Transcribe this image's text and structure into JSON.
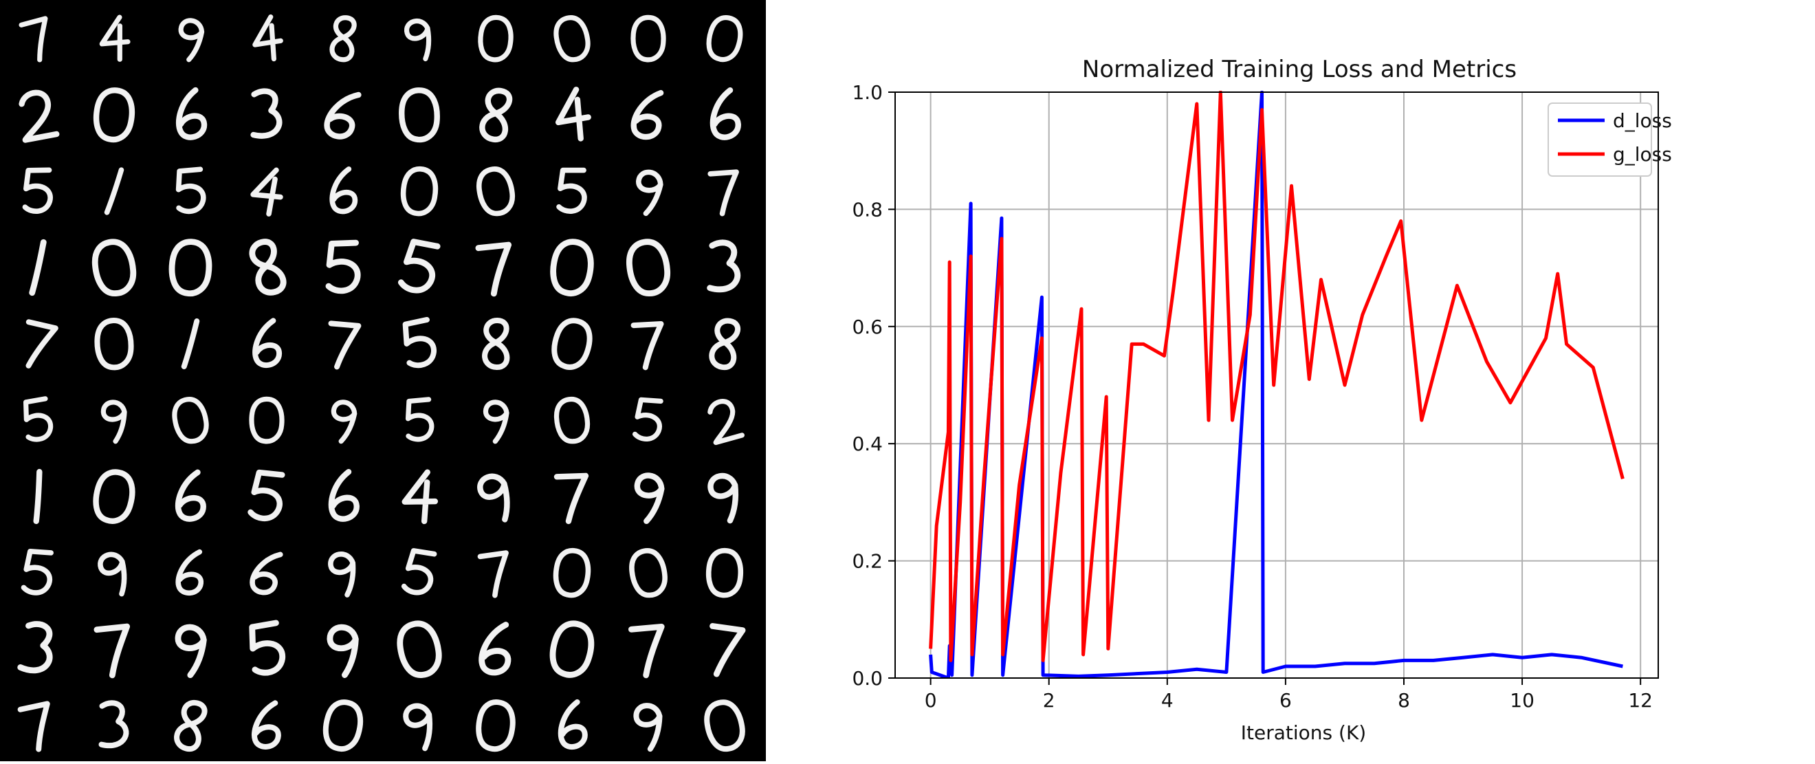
{
  "digit_grid": {
    "description_rows": 10,
    "cols": 10,
    "samples": [
      [
        "7",
        "4",
        "9",
        "4",
        "8",
        "9",
        "0",
        "0",
        "0",
        "0"
      ],
      [
        "2",
        "0",
        "6",
        "3",
        "6",
        "0",
        "8",
        "4",
        "6",
        "6"
      ],
      [
        "5",
        "1",
        "5",
        "4",
        "6",
        "0",
        "0",
        "5",
        "9",
        "7"
      ],
      [
        "1",
        "0",
        "0",
        "8",
        "5",
        "5",
        "7",
        "0",
        "0",
        "3"
      ],
      [
        "7",
        "0",
        "1",
        "6",
        "7",
        "5",
        "8",
        "0",
        "7",
        "8"
      ],
      [
        "5",
        "9",
        "0",
        "0",
        "9",
        "5",
        "9",
        "0",
        "5",
        "2"
      ],
      [
        "1",
        "0",
        "6",
        "5",
        "6",
        "4",
        "9",
        "7",
        "9",
        "9"
      ],
      [
        "5",
        "9",
        "6",
        "6",
        "9",
        "5",
        "7",
        "0",
        "0",
        "0"
      ],
      [
        "3",
        "7",
        "9",
        "5",
        "9",
        "0",
        "6",
        "0",
        "7",
        "7"
      ],
      [
        "7",
        "3",
        "8",
        "6",
        "0",
        "9",
        "0",
        "6",
        "9",
        "0"
      ]
    ]
  },
  "chart_data": {
    "type": "line",
    "title": "Normalized Training Loss and Metrics",
    "xlabel": "Iterations (K)",
    "ylabel": "",
    "xlim": [
      -0.6,
      12.3
    ],
    "ylim": [
      0.0,
      1.0
    ],
    "xticks": [
      "0",
      "2",
      "4",
      "6",
      "8",
      "10",
      "12"
    ],
    "yticks": [
      "0.0",
      "0.2",
      "0.4",
      "0.6",
      "0.8",
      "1.0"
    ],
    "grid": true,
    "legend_position": "top-right",
    "series": [
      {
        "name": "d_loss",
        "color": "#0000ff",
        "points": [
          [
            0.0,
            0.04
          ],
          [
            0.02,
            0.01
          ],
          [
            0.3,
            0.0
          ],
          [
            0.32,
            0.055
          ],
          [
            0.36,
            0.005
          ],
          [
            0.68,
            0.81
          ],
          [
            0.7,
            0.005
          ],
          [
            1.2,
            0.785
          ],
          [
            1.22,
            0.005
          ],
          [
            1.88,
            0.65
          ],
          [
            1.9,
            0.005
          ],
          [
            2.5,
            0.003
          ],
          [
            3.0,
            0.005
          ],
          [
            4.0,
            0.01
          ],
          [
            4.5,
            0.015
          ],
          [
            5.0,
            0.01
          ],
          [
            5.6,
            1.0
          ],
          [
            5.62,
            0.01
          ],
          [
            6.0,
            0.02
          ],
          [
            6.5,
            0.02
          ],
          [
            7.0,
            0.025
          ],
          [
            7.5,
            0.025
          ],
          [
            8.0,
            0.03
          ],
          [
            8.5,
            0.03
          ],
          [
            9.0,
            0.035
          ],
          [
            9.5,
            0.04
          ],
          [
            10.0,
            0.035
          ],
          [
            10.5,
            0.04
          ],
          [
            11.0,
            0.035
          ],
          [
            11.7,
            0.02
          ]
        ]
      },
      {
        "name": "g_loss",
        "color": "#ff0000",
        "points": [
          [
            0.0,
            0.05
          ],
          [
            0.1,
            0.26
          ],
          [
            0.3,
            0.42
          ],
          [
            0.32,
            0.71
          ],
          [
            0.34,
            0.03
          ],
          [
            0.5,
            0.3
          ],
          [
            0.68,
            0.72
          ],
          [
            0.7,
            0.04
          ],
          [
            0.9,
            0.34
          ],
          [
            1.2,
            0.75
          ],
          [
            1.22,
            0.04
          ],
          [
            1.5,
            0.33
          ],
          [
            1.88,
            0.58
          ],
          [
            1.9,
            0.03
          ],
          [
            2.2,
            0.35
          ],
          [
            2.55,
            0.63
          ],
          [
            2.58,
            0.04
          ],
          [
            2.97,
            0.48
          ],
          [
            3.0,
            0.05
          ],
          [
            3.4,
            0.57
          ],
          [
            3.6,
            0.57
          ],
          [
            3.95,
            0.55
          ],
          [
            4.1,
            0.66
          ],
          [
            4.5,
            0.98
          ],
          [
            4.7,
            0.44
          ],
          [
            4.9,
            1.0
          ],
          [
            5.1,
            0.44
          ],
          [
            5.4,
            0.62
          ],
          [
            5.6,
            0.97
          ],
          [
            5.8,
            0.5
          ],
          [
            6.1,
            0.84
          ],
          [
            6.4,
            0.51
          ],
          [
            6.6,
            0.68
          ],
          [
            7.0,
            0.5
          ],
          [
            7.3,
            0.62
          ],
          [
            7.7,
            0.72
          ],
          [
            7.95,
            0.78
          ],
          [
            8.3,
            0.44
          ],
          [
            8.9,
            0.67
          ],
          [
            9.4,
            0.54
          ],
          [
            9.8,
            0.47
          ],
          [
            10.4,
            0.58
          ],
          [
            10.6,
            0.69
          ],
          [
            10.75,
            0.57
          ],
          [
            11.2,
            0.53
          ],
          [
            11.7,
            0.34
          ]
        ]
      }
    ]
  }
}
